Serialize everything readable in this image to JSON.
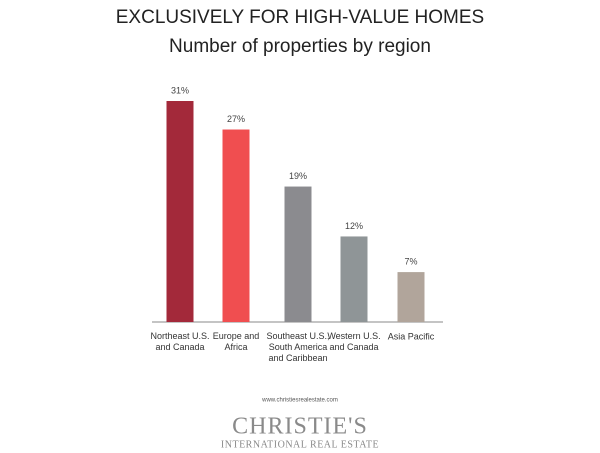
{
  "chart_data": {
    "type": "bar",
    "title": "EXCLUSIVELY FOR HIGH-VALUE HOMES",
    "subtitle": "Number of properties by region",
    "categories": [
      "Northeast U.S.\nand Canada",
      "Europe and\nAfrica",
      "Southeast U.S.,\nSouth America\nand Caribbean",
      "Western U.S.\nand Canada",
      "Asia Pacific"
    ],
    "values": [
      31,
      27,
      19,
      12,
      7
    ],
    "value_labels": [
      "31%",
      "27%",
      "19%",
      "12%",
      "7%"
    ],
    "colors": [
      "#a3293a",
      "#f04e50",
      "#8b8b8f",
      "#8f9597",
      "#b1a59b"
    ]
  },
  "footer": {
    "url": "www.christiesrealestate.com",
    "brand": "CHRISTIE'S",
    "brand_sub": "INTERNATIONAL REAL ESTATE"
  }
}
